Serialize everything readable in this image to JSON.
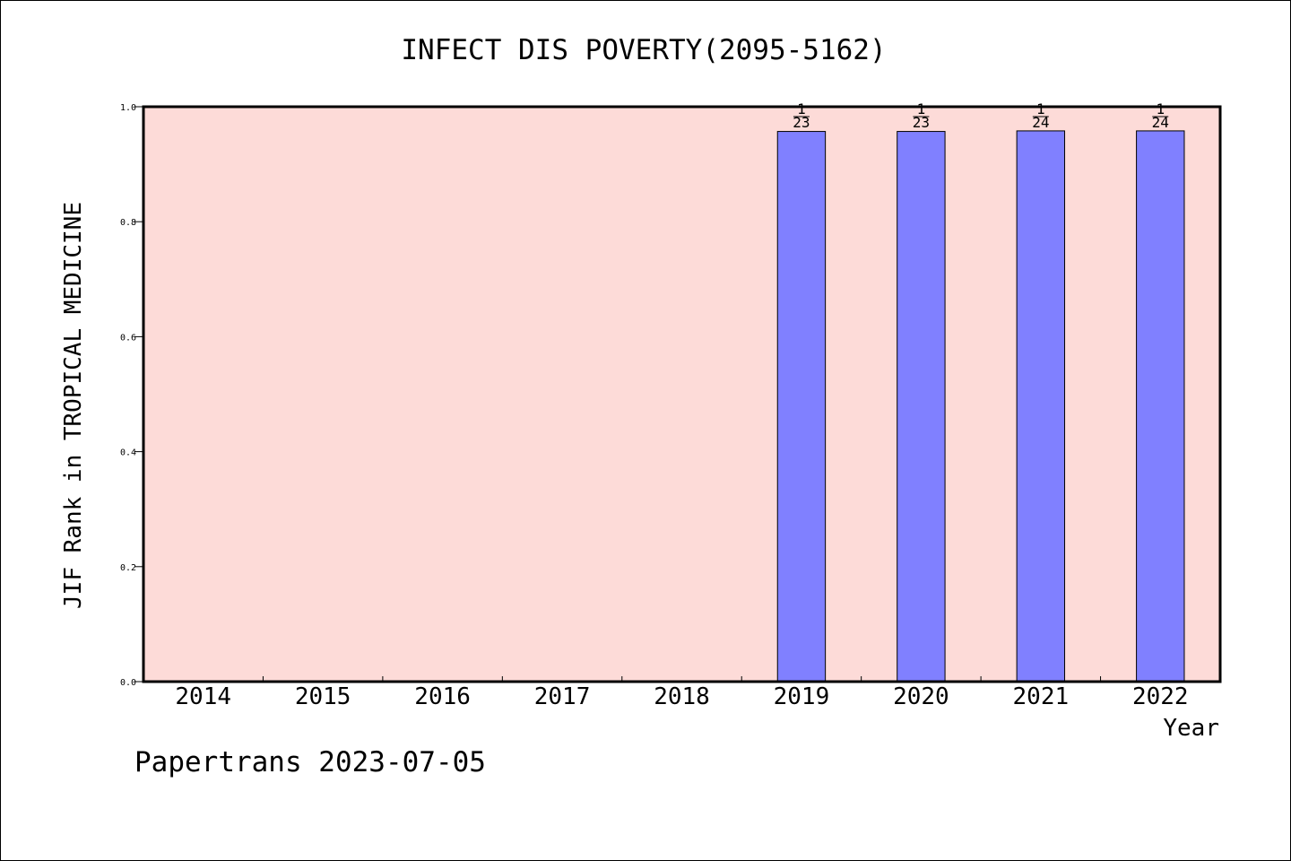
{
  "chart_data": {
    "type": "bar",
    "title": "INFECT DIS POVERTY(2095-5162)",
    "xlabel": "Year",
    "ylabel": "JIF Rank in TROPICAL MEDICINE",
    "categories": [
      "2014",
      "2015",
      "2016",
      "2017",
      "2018",
      "2019",
      "2020",
      "2021",
      "2022"
    ],
    "values": [
      null,
      null,
      null,
      null,
      null,
      0.957,
      0.957,
      0.958,
      0.958
    ],
    "rank": [
      null,
      null,
      null,
      null,
      null,
      "1",
      "1",
      "1",
      "1"
    ],
    "total": [
      null,
      null,
      null,
      null,
      null,
      "23",
      "23",
      "24",
      "24"
    ],
    "ylim": [
      0,
      1
    ],
    "yticks": [
      "0.0",
      "0.2",
      "0.4",
      "0.6",
      "0.8",
      "1.0"
    ],
    "grid": false,
    "colors": {
      "plot_background": "#fddbd8",
      "bar_fill": "#8080ff",
      "bar_stroke": "#000000",
      "axis": "#000000"
    }
  },
  "footer": {
    "text": "Papertrans 2023-07-05"
  }
}
